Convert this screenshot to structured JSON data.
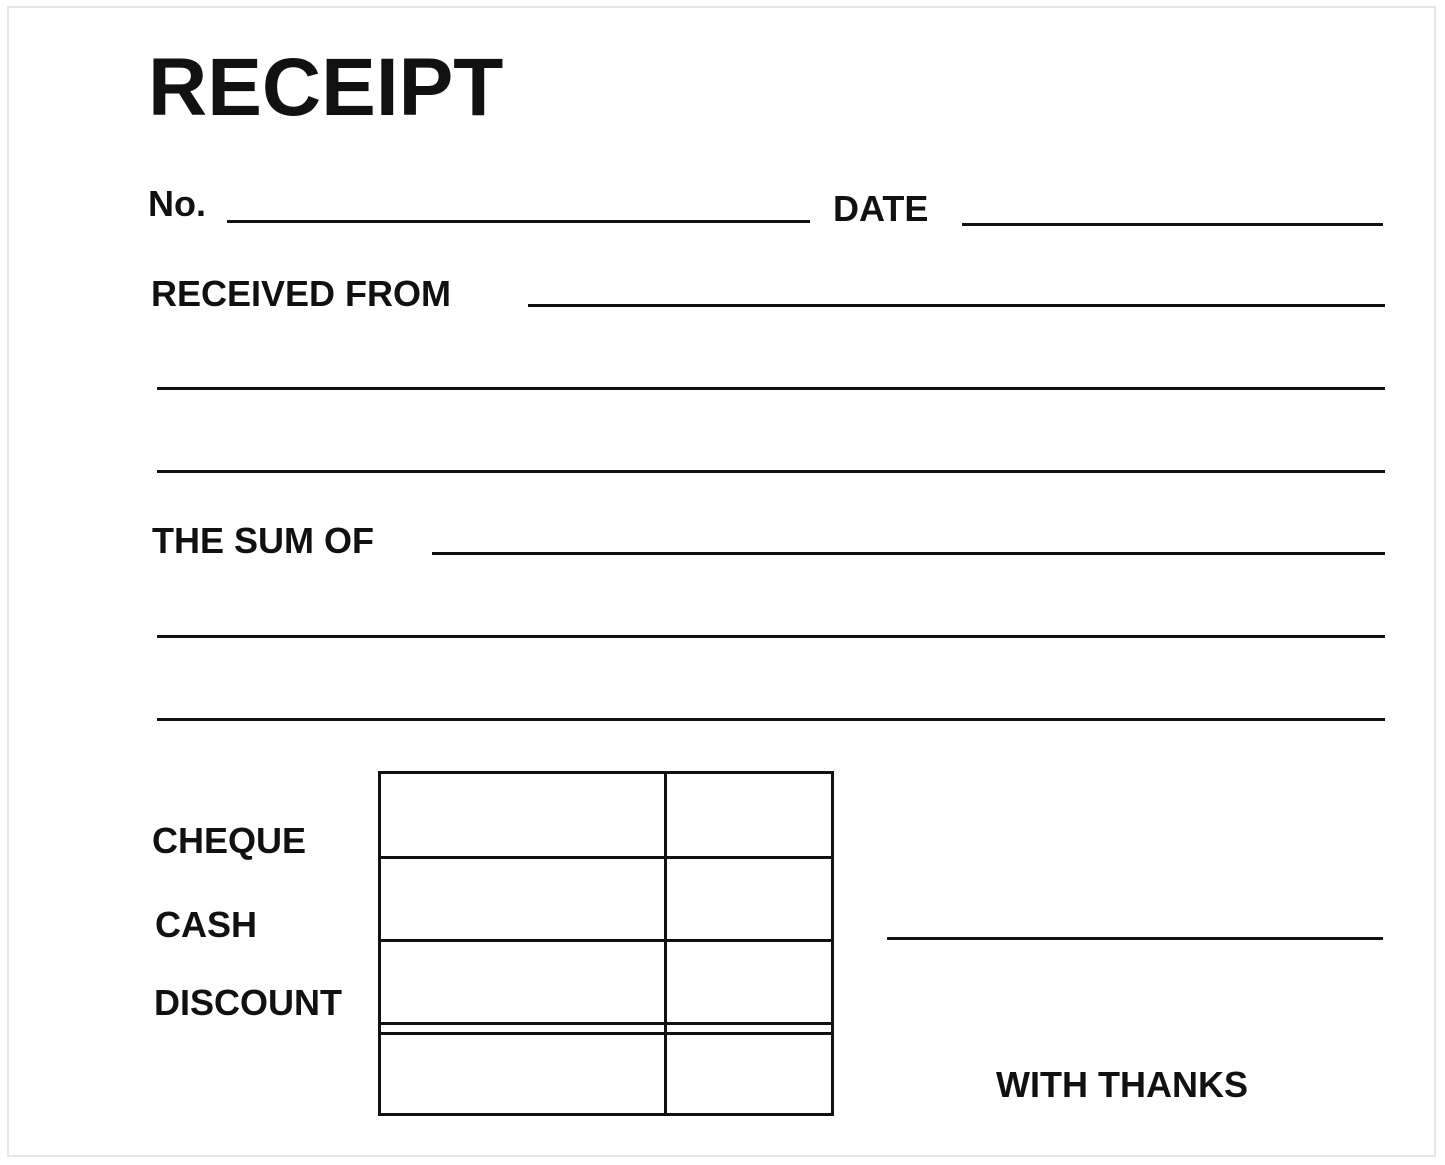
{
  "title": "RECEIPT",
  "fields": {
    "number_label": "No.",
    "date_label": "DATE",
    "received_from_label": "RECEIVED FROM",
    "sum_of_label": "THE SUM OF"
  },
  "payment_rows": [
    "CHEQUE",
    "CASH",
    "DISCOUNT"
  ],
  "closing": "WITH THANKS"
}
